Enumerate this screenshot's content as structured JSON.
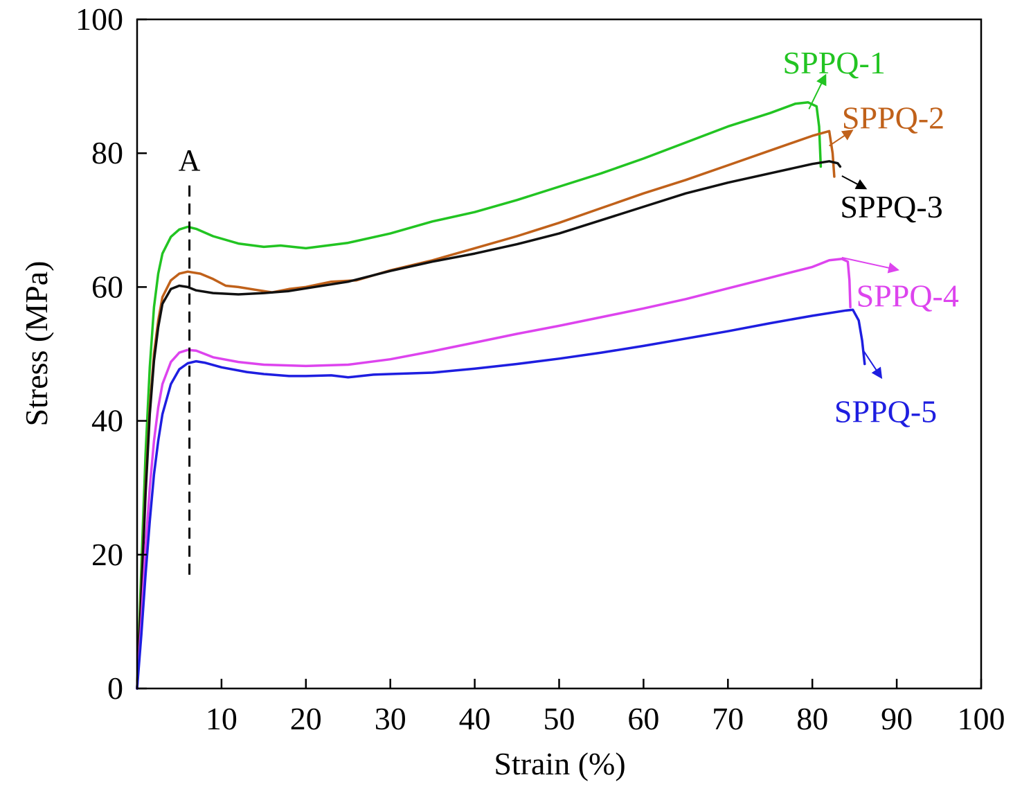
{
  "chart_data": {
    "type": "line",
    "xlabel": "Strain (%)",
    "ylabel": "Stress (MPa)",
    "xlim": [
      0,
      100
    ],
    "ylim": [
      0,
      100
    ],
    "x_ticks": [
      10,
      20,
      30,
      40,
      50,
      60,
      70,
      80,
      90,
      100
    ],
    "y_ticks": [
      0,
      20,
      40,
      60,
      80,
      100
    ],
    "grid": false,
    "legend": "labels at line ends with arrows",
    "annotations": [
      {
        "text": "A",
        "x": 6.2,
        "y_from": 17,
        "y_to": 76,
        "style": "dashed vertical line"
      }
    ],
    "series": [
      {
        "name": "SPPQ-1",
        "color": "#22c422",
        "points": [
          [
            0,
            0
          ],
          [
            0.5,
            18
          ],
          [
            1,
            35
          ],
          [
            1.5,
            48
          ],
          [
            2,
            57
          ],
          [
            2.5,
            62
          ],
          [
            3,
            65
          ],
          [
            4,
            67.5
          ],
          [
            5,
            68.6
          ],
          [
            6,
            69
          ],
          [
            7,
            68.7
          ],
          [
            9,
            67.6
          ],
          [
            12,
            66.5
          ],
          [
            15,
            66
          ],
          [
            17,
            66.2
          ],
          [
            20,
            65.8
          ],
          [
            25,
            66.6
          ],
          [
            30,
            68
          ],
          [
            35,
            69.8
          ],
          [
            40,
            71.2
          ],
          [
            45,
            73
          ],
          [
            50,
            75
          ],
          [
            55,
            77
          ],
          [
            60,
            79.2
          ],
          [
            65,
            81.6
          ],
          [
            70,
            84
          ],
          [
            75,
            86
          ],
          [
            78,
            87.4
          ],
          [
            79.5,
            87.6
          ],
          [
            80.5,
            87
          ],
          [
            80.8,
            84
          ],
          [
            81,
            78
          ]
        ]
      },
      {
        "name": "SPPQ-2",
        "color": "#c0611a",
        "points": [
          [
            0,
            0
          ],
          [
            0.5,
            15
          ],
          [
            1,
            30
          ],
          [
            1.5,
            42
          ],
          [
            2,
            50
          ],
          [
            2.5,
            55
          ],
          [
            3,
            58.5
          ],
          [
            4,
            61
          ],
          [
            5,
            62
          ],
          [
            6,
            62.3
          ],
          [
            7.5,
            62
          ],
          [
            9,
            61.2
          ],
          [
            10.5,
            60.2
          ],
          [
            12,
            60
          ],
          [
            14,
            59.6
          ],
          [
            16,
            59.2
          ],
          [
            18,
            59.7
          ],
          [
            20,
            60
          ],
          [
            23,
            60.8
          ],
          [
            26,
            61
          ],
          [
            30,
            62.5
          ],
          [
            35,
            64
          ],
          [
            40,
            65.8
          ],
          [
            45,
            67.6
          ],
          [
            50,
            69.6
          ],
          [
            55,
            71.8
          ],
          [
            60,
            74
          ],
          [
            65,
            76
          ],
          [
            70,
            78.2
          ],
          [
            75,
            80.4
          ],
          [
            80,
            82.6
          ],
          [
            82,
            83.3
          ],
          [
            82.4,
            80
          ],
          [
            82.6,
            76.5
          ]
        ]
      },
      {
        "name": "SPPQ-3",
        "color": "#111111",
        "points": [
          [
            0,
            0
          ],
          [
            0.5,
            14
          ],
          [
            1,
            29
          ],
          [
            1.5,
            41
          ],
          [
            2,
            49
          ],
          [
            2.5,
            54
          ],
          [
            3,
            57.5
          ],
          [
            4,
            59.7
          ],
          [
            5,
            60.2
          ],
          [
            6,
            60
          ],
          [
            7,
            59.5
          ],
          [
            9,
            59.1
          ],
          [
            12,
            58.9
          ],
          [
            15,
            59.1
          ],
          [
            18,
            59.4
          ],
          [
            20,
            59.8
          ],
          [
            25,
            60.8
          ],
          [
            30,
            62.4
          ],
          [
            35,
            63.8
          ],
          [
            40,
            65
          ],
          [
            45,
            66.4
          ],
          [
            50,
            68
          ],
          [
            55,
            70
          ],
          [
            60,
            72
          ],
          [
            65,
            74
          ],
          [
            70,
            75.6
          ],
          [
            75,
            77
          ],
          [
            80,
            78.4
          ],
          [
            82,
            78.8
          ],
          [
            83,
            78.5
          ],
          [
            83.3,
            78
          ]
        ]
      },
      {
        "name": "SPPQ-4",
        "color": "#dd44ee",
        "points": [
          [
            0,
            0
          ],
          [
            0.5,
            10
          ],
          [
            1,
            21
          ],
          [
            1.5,
            30
          ],
          [
            2,
            37
          ],
          [
            2.5,
            42
          ],
          [
            3,
            45.5
          ],
          [
            4,
            48.8
          ],
          [
            5,
            50.2
          ],
          [
            6,
            50.6
          ],
          [
            7,
            50.5
          ],
          [
            9,
            49.5
          ],
          [
            12,
            48.8
          ],
          [
            15,
            48.4
          ],
          [
            20,
            48.2
          ],
          [
            25,
            48.4
          ],
          [
            30,
            49.2
          ],
          [
            35,
            50.4
          ],
          [
            40,
            51.7
          ],
          [
            45,
            53
          ],
          [
            50,
            54.2
          ],
          [
            55,
            55.5
          ],
          [
            60,
            56.8
          ],
          [
            65,
            58.2
          ],
          [
            70,
            59.8
          ],
          [
            75,
            61.4
          ],
          [
            80,
            63
          ],
          [
            82,
            64
          ],
          [
            83.5,
            64.2
          ],
          [
            84.2,
            63.8
          ],
          [
            84.4,
            61
          ],
          [
            84.5,
            57
          ]
        ]
      },
      {
        "name": "SPPQ-5",
        "color": "#1e1ee0",
        "points": [
          [
            0,
            0
          ],
          [
            0.5,
            8
          ],
          [
            1,
            17
          ],
          [
            1.5,
            25
          ],
          [
            2,
            32
          ],
          [
            2.5,
            37
          ],
          [
            3,
            41
          ],
          [
            4,
            45.5
          ],
          [
            5,
            47.7
          ],
          [
            6,
            48.6
          ],
          [
            7,
            48.9
          ],
          [
            8,
            48.7
          ],
          [
            10,
            48
          ],
          [
            13,
            47.3
          ],
          [
            15,
            47
          ],
          [
            18,
            46.7
          ],
          [
            20,
            46.7
          ],
          [
            23,
            46.8
          ],
          [
            25,
            46.5
          ],
          [
            28,
            46.9
          ],
          [
            30,
            47
          ],
          [
            35,
            47.2
          ],
          [
            40,
            47.8
          ],
          [
            45,
            48.5
          ],
          [
            50,
            49.3
          ],
          [
            55,
            50.2
          ],
          [
            60,
            51.2
          ],
          [
            65,
            52.3
          ],
          [
            70,
            53.4
          ],
          [
            75,
            54.6
          ],
          [
            80,
            55.7
          ],
          [
            84,
            56.5
          ],
          [
            84.8,
            56.6
          ],
          [
            85.5,
            55
          ],
          [
            85.9,
            52
          ],
          [
            86.2,
            48.5
          ]
        ]
      }
    ],
    "series_labels": [
      {
        "series": "SPPQ-1",
        "text": "SPPQ-1",
        "color": "#22c422",
        "x": 76.5,
        "y": 91.9,
        "arrow_from": [
          79.6,
          86.6
        ],
        "arrow_to": [
          81.5,
          91.5
        ]
      },
      {
        "series": "SPPQ-2",
        "text": "SPPQ-2",
        "color": "#c0611a",
        "x": 83.5,
        "y": 83.7,
        "arrow_from": [
          82.0,
          81.1
        ],
        "arrow_to": [
          84.6,
          83.3
        ]
      },
      {
        "series": "SPPQ-3",
        "text": "SPPQ-3",
        "color": "#000000",
        "x": 83.3,
        "y": 70.4,
        "arrow_from": [
          83.5,
          76.6
        ],
        "arrow_to": [
          86.2,
          74.8
        ]
      },
      {
        "series": "SPPQ-4",
        "text": "SPPQ-4",
        "color": "#dd44ee",
        "x": 85.2,
        "y": 57.1,
        "arrow_from": [
          83.5,
          64.4
        ],
        "arrow_to": [
          90.0,
          62.6
        ]
      },
      {
        "series": "SPPQ-5",
        "text": "SPPQ-5",
        "color": "#1e1ee0",
        "x": 82.6,
        "y": 39.8,
        "arrow_from": [
          86.0,
          50.6
        ],
        "arrow_to": [
          88.1,
          46.6
        ]
      }
    ]
  }
}
